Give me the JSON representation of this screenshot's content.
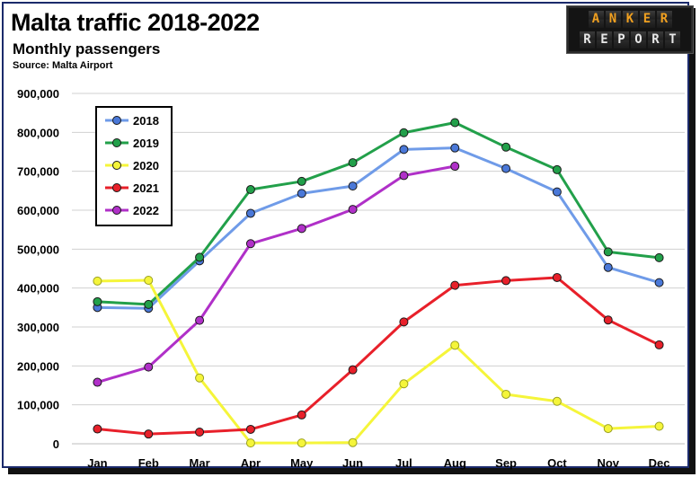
{
  "title": "Malta traffic 2018-2022",
  "subtitle": "Monthly passengers",
  "source": "Source: Malta Airport",
  "logo": {
    "line1": "ANKER",
    "line2": "REPORT"
  },
  "chart_data": {
    "type": "line",
    "categories": [
      "Jan",
      "Feb",
      "Mar",
      "Apr",
      "May",
      "Jun",
      "Jul",
      "Aug",
      "Sep",
      "Oct",
      "Nov",
      "Dec"
    ],
    "ylim": [
      0,
      900000
    ],
    "yticks": [
      "0",
      "100,000",
      "200,000",
      "300,000",
      "400,000",
      "500,000",
      "600,000",
      "700,000",
      "800,000",
      "900,000"
    ],
    "ytick_values": [
      0,
      100000,
      200000,
      300000,
      400000,
      500000,
      600000,
      700000,
      800000,
      900000
    ],
    "grid": true,
    "legend_position": "top-left",
    "series": [
      {
        "name": "2018",
        "color": "#6f9be8",
        "marker": "#4a78d8",
        "values": [
          350000,
          348000,
          470000,
          592000,
          643000,
          662000,
          756000,
          760000,
          707000,
          647000,
          453000,
          414000
        ]
      },
      {
        "name": "2019",
        "color": "#22a04a",
        "marker": "#22a04a",
        "values": [
          365000,
          358000,
          479000,
          653000,
          674000,
          722000,
          799000,
          825000,
          762000,
          704000,
          493000,
          478000
        ]
      },
      {
        "name": "2020",
        "color": "#f5f53a",
        "marker": "#f5f53a",
        "values": [
          418000,
          420000,
          169000,
          2000,
          2000,
          3000,
          154000,
          253000,
          127000,
          109000,
          39000,
          45000
        ]
      },
      {
        "name": "2021",
        "color": "#e8202a",
        "marker": "#e8202a",
        "values": [
          38000,
          25000,
          30000,
          37000,
          74000,
          190000,
          313000,
          407000,
          419000,
          427000,
          318000,
          254000
        ]
      },
      {
        "name": "2022",
        "color": "#b030c8",
        "marker": "#b030c8",
        "values": [
          158000,
          197000,
          317000,
          514000,
          553000,
          602000,
          689000,
          713000,
          null,
          null,
          null,
          null
        ]
      }
    ]
  }
}
